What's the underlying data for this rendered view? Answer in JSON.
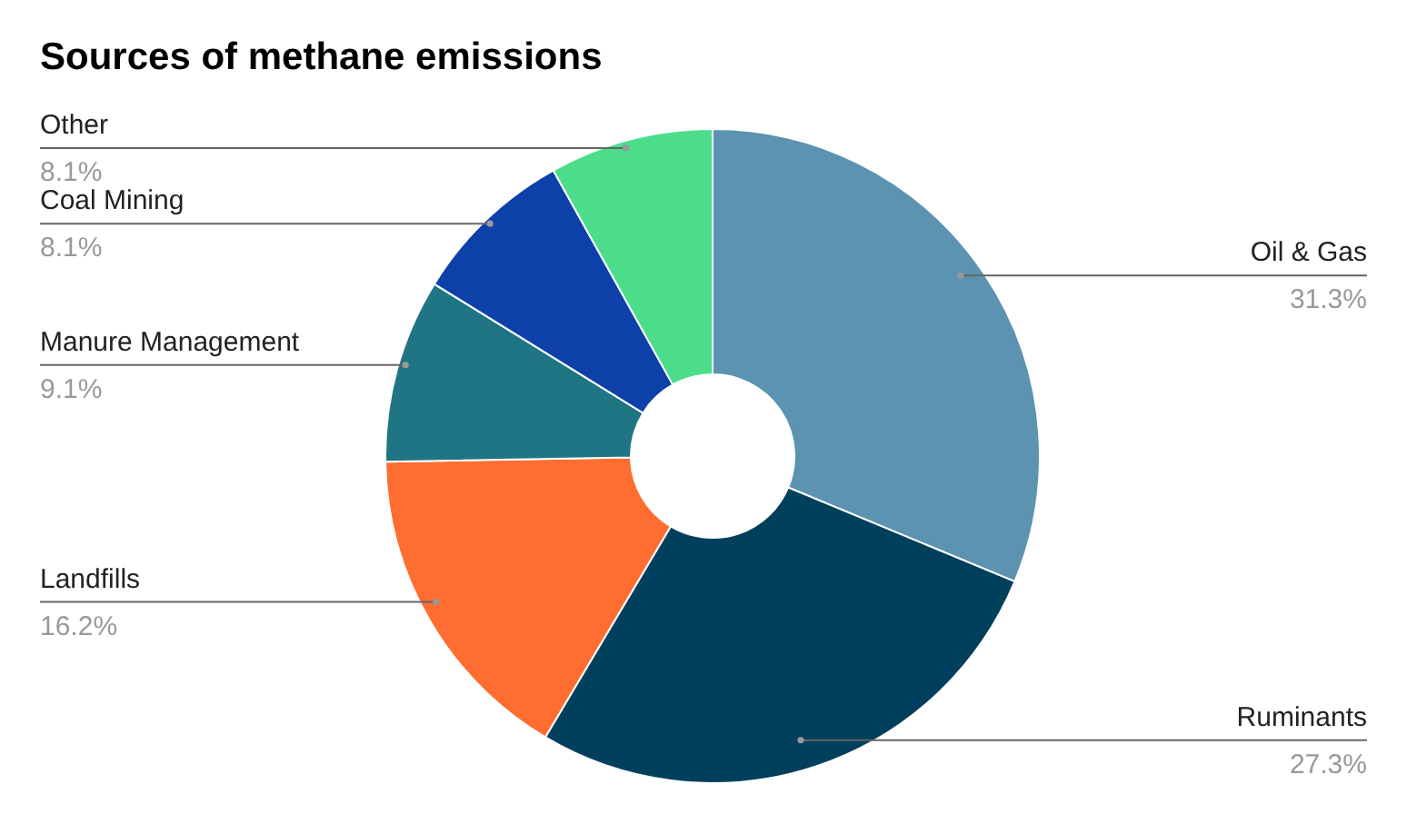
{
  "chart_data": {
    "type": "donut",
    "title": "Sources of methane emissions",
    "categories": [
      "Oil & Gas",
      "Ruminants",
      "Landfills",
      "Manure Management",
      "Coal Mining",
      "Other"
    ],
    "values": [
      31.3,
      27.3,
      16.2,
      9.1,
      8.1,
      8.1
    ],
    "value_labels": [
      "31.3%",
      "27.3%",
      "16.2%",
      "9.1%",
      "8.1%",
      "8.1%"
    ],
    "colors": [
      "#5b93b0",
      "#00405c",
      "#ff6d31",
      "#1f7584",
      "#0d41a9",
      "#4cdd8a"
    ],
    "legend": false
  }
}
